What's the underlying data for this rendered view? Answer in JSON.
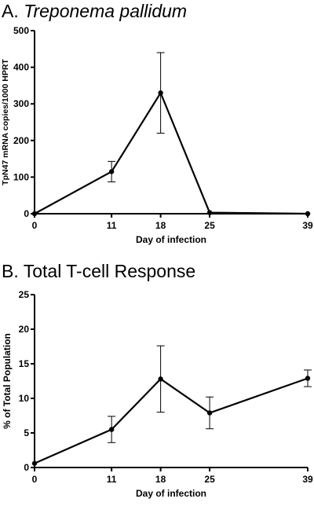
{
  "chart_data": [
    {
      "type": "line",
      "panel_label": "A.",
      "title": "Treponema pallidum",
      "xlabel": "Day of infection",
      "ylabel": "TpN47 mRNA copies/1000 HPRT",
      "x_ticks": [
        0,
        11,
        18,
        25,
        39
      ],
      "y_ticks": [
        0,
        100,
        200,
        300,
        400,
        500
      ],
      "xlim": [
        0,
        39
      ],
      "ylim": [
        0,
        500
      ],
      "series": [
        {
          "x": [
            0,
            11,
            18,
            25,
            39
          ],
          "y": [
            0,
            115,
            330,
            3,
            0
          ],
          "err": [
            0,
            28,
            110,
            0,
            0
          ],
          "color": "#000000"
        }
      ]
    },
    {
      "type": "line",
      "panel_label": "B.",
      "title": "Total T-cell Response",
      "xlabel": "Day of infection",
      "ylabel": "% of Total Population",
      "x_ticks": [
        0,
        11,
        18,
        25,
        39
      ],
      "y_ticks": [
        0,
        5,
        10,
        15,
        20,
        25
      ],
      "xlim": [
        0,
        39
      ],
      "ylim": [
        0,
        25
      ],
      "series": [
        {
          "x": [
            0,
            11,
            18,
            25,
            39
          ],
          "y": [
            0.6,
            5.5,
            12.8,
            7.9,
            12.9
          ],
          "err": [
            0,
            1.9,
            4.8,
            2.3,
            1.2
          ],
          "color": "#000000"
        }
      ]
    }
  ]
}
